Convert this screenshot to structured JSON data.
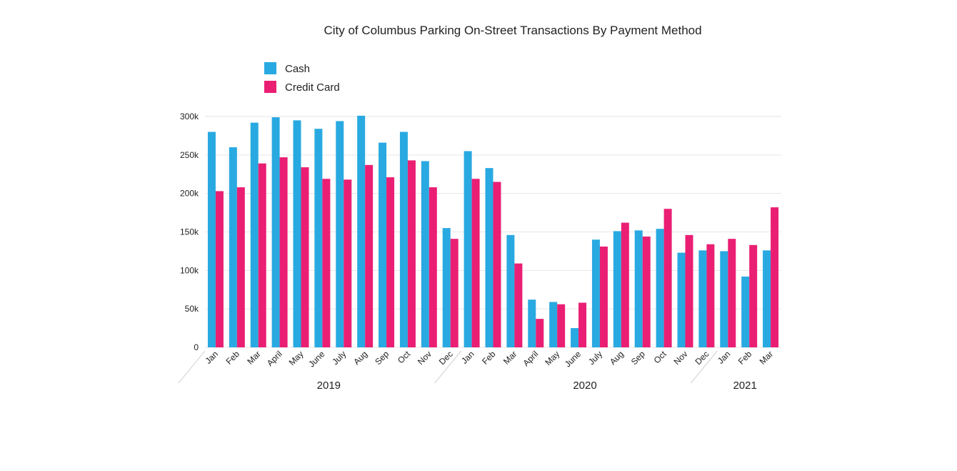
{
  "chart_data": {
    "type": "bar",
    "title": "City of Columbus Parking On-Street Transactions By Payment Method",
    "xlabel": "",
    "ylabel": "",
    "ylim": [
      0,
      300000
    ],
    "yticks": [
      0,
      50000,
      100000,
      150000,
      200000,
      250000,
      300000
    ],
    "ytick_labels": [
      "0",
      "50k",
      "100k",
      "150k",
      "200k",
      "250k",
      "300k"
    ],
    "grid": true,
    "legend_position": "top-left",
    "categories": [
      "Jan",
      "Feb",
      "Mar",
      "April",
      "May",
      "June",
      "July",
      "Aug",
      "Sep",
      "Oct",
      "Nov",
      "Dec",
      "Jan",
      "Feb",
      "Mar",
      "April",
      "May",
      "June",
      "July",
      "Aug",
      "Sep",
      "Oct",
      "Nov",
      "Dec",
      "Jan",
      "Feb",
      "Mar"
    ],
    "groups": [
      {
        "label": "2019",
        "start": 0,
        "count": 12
      },
      {
        "label": "2020",
        "start": 12,
        "count": 12
      },
      {
        "label": "2021",
        "start": 24,
        "count": 3
      }
    ],
    "series": [
      {
        "name": "Cash",
        "color": "#29a9e1",
        "values": [
          280000,
          260000,
          292000,
          299000,
          295000,
          284000,
          294000,
          301000,
          266000,
          280000,
          242000,
          155000,
          255000,
          233000,
          146000,
          62000,
          59000,
          25000,
          140000,
          151000,
          152000,
          154000,
          123000,
          126000,
          125000,
          92000,
          126000
        ]
      },
      {
        "name": "Credit Card",
        "color": "#ea1f74",
        "values": [
          203000,
          208000,
          239000,
          247000,
          234000,
          219000,
          218000,
          237000,
          221000,
          243000,
          208000,
          141000,
          219000,
          215000,
          109000,
          37000,
          56000,
          58000,
          131000,
          162000,
          144000,
          180000,
          146000,
          134000,
          141000,
          133000,
          182000
        ]
      }
    ]
  }
}
